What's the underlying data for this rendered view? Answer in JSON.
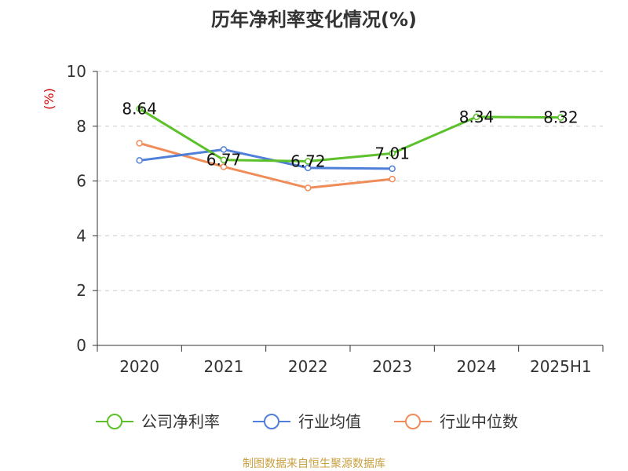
{
  "chart_data": {
    "type": "line",
    "title": "历年净利率变化情况(%)",
    "ylabel": "(%)",
    "xlabel": "",
    "categories": [
      "2020",
      "2021",
      "2022",
      "2023",
      "2024",
      "2025H1"
    ],
    "ylim": [
      0,
      10
    ],
    "yticks": [
      0,
      2,
      4,
      6,
      8,
      10
    ],
    "grid": true,
    "legend_position": "bottom",
    "series": [
      {
        "name": "公司净利率",
        "color": "#5cc12b",
        "values": [
          8.64,
          6.77,
          6.72,
          7.01,
          8.34,
          8.32
        ],
        "labels": [
          "8.64",
          "6.77",
          "6.72",
          "7.01",
          "8.34",
          "8.32"
        ]
      },
      {
        "name": "行业均值",
        "color": "#4f7fd8",
        "values": [
          6.75,
          7.15,
          6.48,
          6.45,
          null,
          null
        ]
      },
      {
        "name": "行业中位数",
        "color": "#f08c5a",
        "values": [
          7.38,
          6.52,
          5.75,
          6.07,
          null,
          null
        ]
      }
    ]
  },
  "source_note": "制图数据来自恒生聚源数据库"
}
